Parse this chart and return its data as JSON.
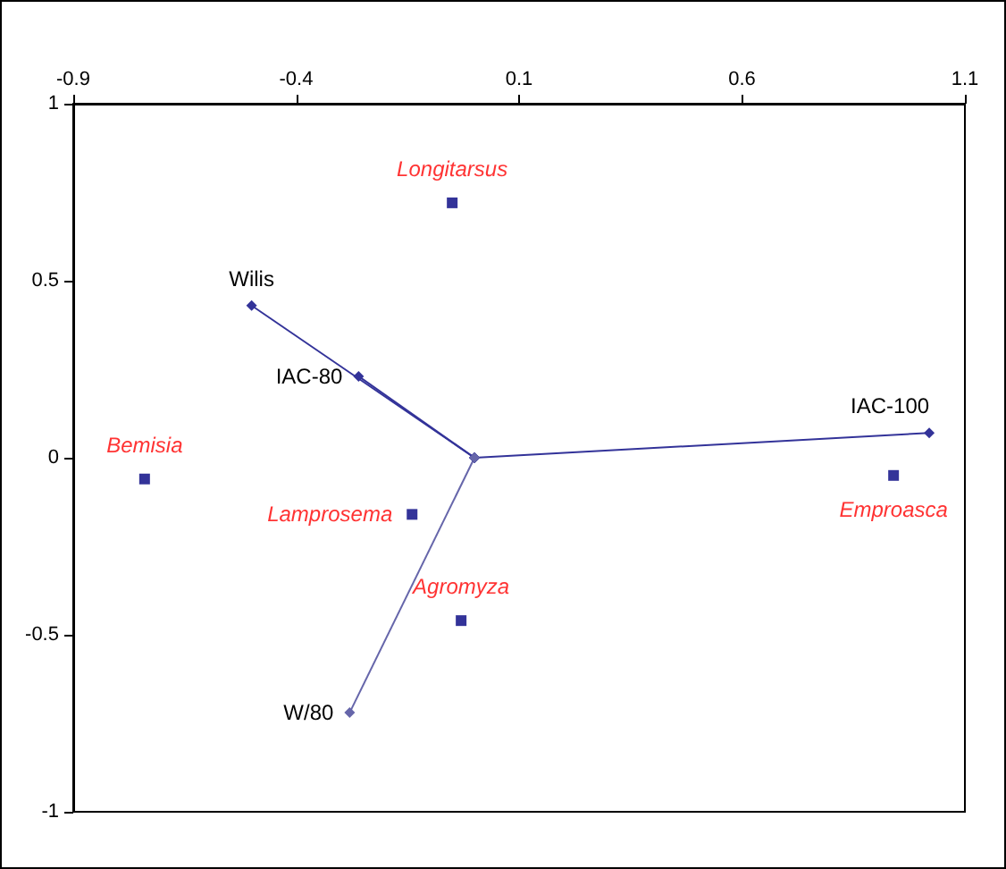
{
  "chart_data": {
    "type": "scatter",
    "xlim": [
      -0.9,
      1.1
    ],
    "ylim": [
      -1,
      1
    ],
    "xticks": [
      -0.9,
      -0.4,
      0.1,
      0.6,
      1.1
    ],
    "yticks": [
      -1,
      -0.5,
      0,
      0.5,
      1
    ],
    "grid": false,
    "legend": false,
    "marker": "square",
    "series": [
      {
        "type": "line",
        "name": "Wilis",
        "color": "#333399",
        "marker": "diamond",
        "x": [
          0,
          -0.5
        ],
        "values": [
          0,
          0.43
        ]
      },
      {
        "type": "line",
        "name": "IAC-80",
        "color": "#333399",
        "marker": "diamond",
        "x": [
          0,
          -0.26
        ],
        "values": [
          0,
          0.23
        ]
      },
      {
        "type": "line",
        "name": "IAC-100",
        "color": "#333399",
        "marker": "diamond",
        "x": [
          0,
          1.02
        ],
        "values": [
          0,
          0.07
        ]
      },
      {
        "type": "line",
        "name": "W/80",
        "color": "#6666aa",
        "marker": "diamond",
        "x": [
          0,
          -0.28
        ],
        "values": [
          0,
          -0.72
        ]
      },
      {
        "type": "scatter",
        "name": "Longitarsus",
        "color": "#000080",
        "x": [
          -0.05
        ],
        "values": [
          0.72
        ]
      },
      {
        "type": "scatter",
        "name": "Bemisia",
        "color": "#000080",
        "x": [
          -0.74
        ],
        "values": [
          -0.06
        ]
      },
      {
        "type": "scatter",
        "name": "Lamprosema",
        "color": "#000080",
        "x": [
          -0.14
        ],
        "values": [
          -0.16
        ]
      },
      {
        "type": "scatter",
        "name": "Agromyza",
        "color": "#000080",
        "x": [
          -0.03
        ],
        "values": [
          -0.46
        ]
      },
      {
        "type": "scatter",
        "name": "Emproasca",
        "color": "#000080",
        "x": [
          0.94
        ],
        "values": [
          -0.05
        ]
      }
    ]
  }
}
